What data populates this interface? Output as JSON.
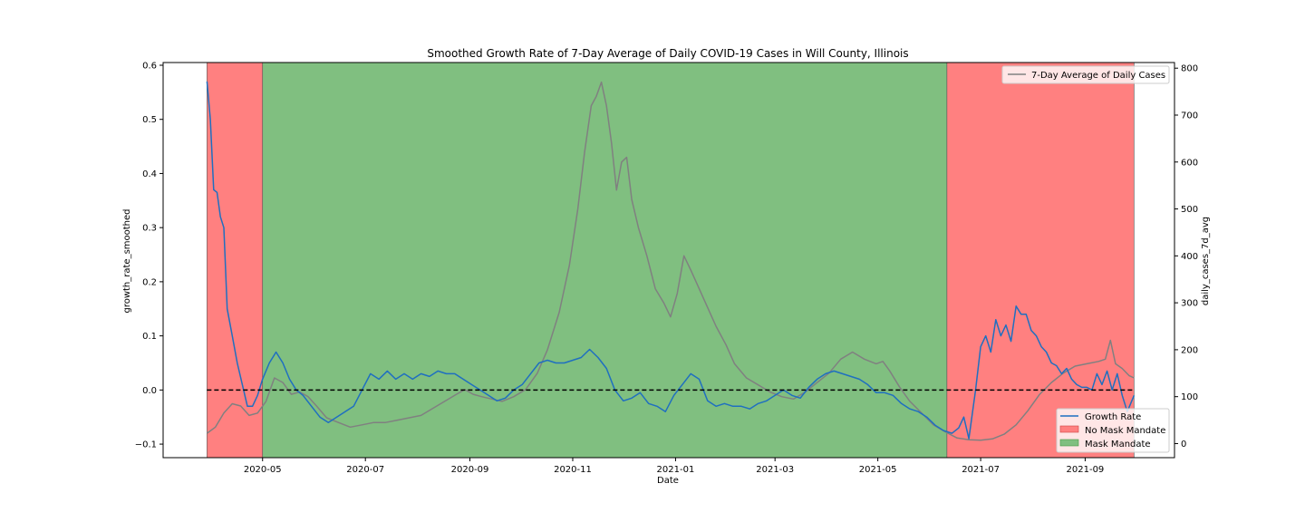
{
  "chart_data": {
    "type": "line",
    "title": "Smoothed Growth Rate of 7-Day Average of Daily COVID-19 Cases in Will County, Illinois",
    "xlabel": "Date",
    "ylabel_left": "growth_rate_smoothed",
    "ylabel_right": "daily_cases_7d_avg",
    "x_range": [
      "2020-03-03",
      "2021-10-24"
    ],
    "ylim_left": [
      -0.125,
      0.605
    ],
    "ylim_right": [
      -30,
      812
    ],
    "x_ticks": [
      "2020-05",
      "2020-07",
      "2020-09",
      "2020-11",
      "2021-01",
      "2021-03",
      "2021-05",
      "2021-07",
      "2021-09"
    ],
    "y_ticks_left": [
      "−0.1",
      "0.0",
      "0.1",
      "0.2",
      "0.3",
      "0.4",
      "0.5",
      "0.6"
    ],
    "y_ticks_right": [
      "0",
      "100",
      "200",
      "300",
      "400",
      "500",
      "600",
      "700",
      "800"
    ],
    "zero_line": 0,
    "regions": [
      {
        "name": "No Mask Mandate",
        "start": "2020-03-29",
        "end": "2020-05-01",
        "color": "#ff8080"
      },
      {
        "name": "Mask Mandate",
        "start": "2020-05-01",
        "end": "2021-06-11",
        "color": "#80bf80"
      },
      {
        "name": "No Mask Mandate",
        "start": "2021-06-11",
        "end": "2021-09-30",
        "color": "#ff8080"
      }
    ],
    "legend_right": {
      "placement": "top-right",
      "entries": [
        "7-Day Average of Daily Cases"
      ]
    },
    "legend_left": {
      "placement": "bottom-right",
      "entries": [
        "Growth Rate",
        "No Mask Mandate",
        "Mask Mandate"
      ]
    },
    "series": [
      {
        "name": "Growth Rate",
        "axis": "left",
        "color": "#1f6fc0",
        "points": [
          [
            "2020-03-29",
            0.57
          ],
          [
            "2020-03-31",
            0.5
          ],
          [
            "2020-04-02",
            0.37
          ],
          [
            "2020-04-04",
            0.365
          ],
          [
            "2020-04-06",
            0.32
          ],
          [
            "2020-04-08",
            0.3
          ],
          [
            "2020-04-10",
            0.15
          ],
          [
            "2020-04-13",
            0.1
          ],
          [
            "2020-04-16",
            0.05
          ],
          [
            "2020-04-19",
            0.01
          ],
          [
            "2020-04-22",
            -0.03
          ],
          [
            "2020-04-25",
            -0.03
          ],
          [
            "2020-04-28",
            -0.01
          ],
          [
            "2020-05-01",
            0.02
          ],
          [
            "2020-05-05",
            0.05
          ],
          [
            "2020-05-09",
            0.07
          ],
          [
            "2020-05-13",
            0.05
          ],
          [
            "2020-05-17",
            0.02
          ],
          [
            "2020-05-21",
            0.0
          ],
          [
            "2020-05-25",
            -0.01
          ],
          [
            "2020-05-30",
            -0.03
          ],
          [
            "2020-06-04",
            -0.05
          ],
          [
            "2020-06-09",
            -0.06
          ],
          [
            "2020-06-14",
            -0.05
          ],
          [
            "2020-06-19",
            -0.04
          ],
          [
            "2020-06-24",
            -0.03
          ],
          [
            "2020-06-29",
            0.0
          ],
          [
            "2020-07-04",
            0.03
          ],
          [
            "2020-07-09",
            0.02
          ],
          [
            "2020-07-14",
            0.035
          ],
          [
            "2020-07-19",
            0.02
          ],
          [
            "2020-07-24",
            0.03
          ],
          [
            "2020-07-29",
            0.02
          ],
          [
            "2020-08-03",
            0.03
          ],
          [
            "2020-08-08",
            0.025
          ],
          [
            "2020-08-13",
            0.035
          ],
          [
            "2020-08-18",
            0.03
          ],
          [
            "2020-08-23",
            0.03
          ],
          [
            "2020-08-28",
            0.02
          ],
          [
            "2020-09-02",
            0.01
          ],
          [
            "2020-09-07",
            0.0
          ],
          [
            "2020-09-12",
            -0.01
          ],
          [
            "2020-09-17",
            -0.02
          ],
          [
            "2020-09-22",
            -0.015
          ],
          [
            "2020-09-27",
            0.0
          ],
          [
            "2020-10-02",
            0.01
          ],
          [
            "2020-10-07",
            0.03
          ],
          [
            "2020-10-12",
            0.05
          ],
          [
            "2020-10-17",
            0.055
          ],
          [
            "2020-10-22",
            0.05
          ],
          [
            "2020-10-27",
            0.05
          ],
          [
            "2020-11-01",
            0.055
          ],
          [
            "2020-11-06",
            0.06
          ],
          [
            "2020-11-11",
            0.075
          ],
          [
            "2020-11-16",
            0.06
          ],
          [
            "2020-11-21",
            0.04
          ],
          [
            "2020-11-26",
            0.0
          ],
          [
            "2020-12-01",
            -0.02
          ],
          [
            "2020-12-06",
            -0.015
          ],
          [
            "2020-12-11",
            -0.005
          ],
          [
            "2020-12-16",
            -0.025
          ],
          [
            "2020-12-21",
            -0.03
          ],
          [
            "2020-12-26",
            -0.04
          ],
          [
            "2020-12-31",
            -0.01
          ],
          [
            "2021-01-05",
            0.01
          ],
          [
            "2021-01-10",
            0.03
          ],
          [
            "2021-01-15",
            0.02
          ],
          [
            "2021-01-20",
            -0.02
          ],
          [
            "2021-01-25",
            -0.03
          ],
          [
            "2021-01-30",
            -0.025
          ],
          [
            "2021-02-04",
            -0.03
          ],
          [
            "2021-02-09",
            -0.03
          ],
          [
            "2021-02-14",
            -0.035
          ],
          [
            "2021-02-19",
            -0.025
          ],
          [
            "2021-02-24",
            -0.02
          ],
          [
            "2021-03-01",
            -0.01
          ],
          [
            "2021-03-06",
            0.0
          ],
          [
            "2021-03-11",
            -0.01
          ],
          [
            "2021-03-16",
            -0.015
          ],
          [
            "2021-03-21",
            0.005
          ],
          [
            "2021-03-26",
            0.02
          ],
          [
            "2021-03-31",
            0.03
          ],
          [
            "2021-04-05",
            0.035
          ],
          [
            "2021-04-10",
            0.03
          ],
          [
            "2021-04-15",
            0.025
          ],
          [
            "2021-04-20",
            0.02
          ],
          [
            "2021-04-25",
            0.01
          ],
          [
            "2021-04-30",
            -0.005
          ],
          [
            "2021-05-05",
            -0.005
          ],
          [
            "2021-05-10",
            -0.01
          ],
          [
            "2021-05-15",
            -0.025
          ],
          [
            "2021-05-20",
            -0.035
          ],
          [
            "2021-05-25",
            -0.04
          ],
          [
            "2021-05-30",
            -0.05
          ],
          [
            "2021-06-04",
            -0.065
          ],
          [
            "2021-06-09",
            -0.075
          ],
          [
            "2021-06-14",
            -0.08
          ],
          [
            "2021-06-18",
            -0.07
          ],
          [
            "2021-06-21",
            -0.05
          ],
          [
            "2021-06-24",
            -0.09
          ],
          [
            "2021-06-28",
            0.0
          ],
          [
            "2021-07-01",
            0.08
          ],
          [
            "2021-07-04",
            0.1
          ],
          [
            "2021-07-07",
            0.07
          ],
          [
            "2021-07-10",
            0.13
          ],
          [
            "2021-07-13",
            0.1
          ],
          [
            "2021-07-16",
            0.12
          ],
          [
            "2021-07-19",
            0.09
          ],
          [
            "2021-07-22",
            0.155
          ],
          [
            "2021-07-25",
            0.14
          ],
          [
            "2021-07-28",
            0.14
          ],
          [
            "2021-07-31",
            0.11
          ],
          [
            "2021-08-03",
            0.1
          ],
          [
            "2021-08-06",
            0.08
          ],
          [
            "2021-08-09",
            0.07
          ],
          [
            "2021-08-12",
            0.05
          ],
          [
            "2021-08-15",
            0.045
          ],
          [
            "2021-08-18",
            0.03
          ],
          [
            "2021-08-21",
            0.04
          ],
          [
            "2021-08-24",
            0.02
          ],
          [
            "2021-08-27",
            0.01
          ],
          [
            "2021-08-30",
            0.005
          ],
          [
            "2021-09-02",
            0.005
          ],
          [
            "2021-09-05",
            0.0
          ],
          [
            "2021-09-08",
            0.03
          ],
          [
            "2021-09-11",
            0.01
          ],
          [
            "2021-09-14",
            0.035
          ],
          [
            "2021-09-17",
            0.0
          ],
          [
            "2021-09-20",
            0.03
          ],
          [
            "2021-09-23",
            -0.01
          ],
          [
            "2021-09-26",
            -0.04
          ],
          [
            "2021-09-30",
            -0.01
          ]
        ]
      },
      {
        "name": "7-Day Average of Daily Cases",
        "axis": "right",
        "color": "#808080",
        "points": [
          [
            "2020-03-29",
            22
          ],
          [
            "2020-04-03",
            35
          ],
          [
            "2020-04-08",
            65
          ],
          [
            "2020-04-13",
            85
          ],
          [
            "2020-04-18",
            80
          ],
          [
            "2020-04-23",
            60
          ],
          [
            "2020-04-28",
            65
          ],
          [
            "2020-05-03",
            90
          ],
          [
            "2020-05-08",
            140
          ],
          [
            "2020-05-13",
            130
          ],
          [
            "2020-05-18",
            105
          ],
          [
            "2020-05-23",
            110
          ],
          [
            "2020-05-28",
            100
          ],
          [
            "2020-06-02",
            80
          ],
          [
            "2020-06-08",
            55
          ],
          [
            "2020-06-15",
            45
          ],
          [
            "2020-06-22",
            35
          ],
          [
            "2020-06-29",
            40
          ],
          [
            "2020-07-06",
            45
          ],
          [
            "2020-07-13",
            45
          ],
          [
            "2020-07-20",
            50
          ],
          [
            "2020-07-27",
            55
          ],
          [
            "2020-08-03",
            60
          ],
          [
            "2020-08-10",
            75
          ],
          [
            "2020-08-17",
            90
          ],
          [
            "2020-08-24",
            105
          ],
          [
            "2020-08-29",
            115
          ],
          [
            "2020-09-03",
            105
          ],
          [
            "2020-09-08",
            100
          ],
          [
            "2020-09-14",
            95
          ],
          [
            "2020-09-20",
            90
          ],
          [
            "2020-09-27",
            100
          ],
          [
            "2020-10-04",
            115
          ],
          [
            "2020-10-11",
            150
          ],
          [
            "2020-10-17",
            200
          ],
          [
            "2020-10-24",
            280
          ],
          [
            "2020-10-30",
            380
          ],
          [
            "2020-11-04",
            500
          ],
          [
            "2020-11-08",
            620
          ],
          [
            "2020-11-12",
            720
          ],
          [
            "2020-11-15",
            740
          ],
          [
            "2020-11-18",
            770
          ],
          [
            "2020-11-21",
            720
          ],
          [
            "2020-11-24",
            640
          ],
          [
            "2020-11-27",
            540
          ],
          [
            "2020-11-30",
            600
          ],
          [
            "2020-12-03",
            610
          ],
          [
            "2020-12-06",
            520
          ],
          [
            "2020-12-10",
            460
          ],
          [
            "2020-12-15",
            400
          ],
          [
            "2020-12-20",
            330
          ],
          [
            "2020-12-25",
            300
          ],
          [
            "2020-12-29",
            270
          ],
          [
            "2021-01-02",
            320
          ],
          [
            "2021-01-06",
            400
          ],
          [
            "2021-01-10",
            370
          ],
          [
            "2021-01-15",
            330
          ],
          [
            "2021-01-20",
            290
          ],
          [
            "2021-01-25",
            250
          ],
          [
            "2021-01-31",
            210
          ],
          [
            "2021-02-05",
            170
          ],
          [
            "2021-02-12",
            140
          ],
          [
            "2021-02-19",
            125
          ],
          [
            "2021-02-26",
            110
          ],
          [
            "2021-03-05",
            100
          ],
          [
            "2021-03-12",
            95
          ],
          [
            "2021-03-19",
            110
          ],
          [
            "2021-03-26",
            130
          ],
          [
            "2021-04-02",
            150
          ],
          [
            "2021-04-09",
            180
          ],
          [
            "2021-04-16",
            195
          ],
          [
            "2021-04-23",
            180
          ],
          [
            "2021-04-30",
            170
          ],
          [
            "2021-05-04",
            175
          ],
          [
            "2021-05-08",
            155
          ],
          [
            "2021-05-14",
            120
          ],
          [
            "2021-05-20",
            90
          ],
          [
            "2021-05-27",
            65
          ],
          [
            "2021-06-03",
            40
          ],
          [
            "2021-06-10",
            25
          ],
          [
            "2021-06-17",
            12
          ],
          [
            "2021-06-24",
            8
          ],
          [
            "2021-07-01",
            7
          ],
          [
            "2021-07-08",
            10
          ],
          [
            "2021-07-15",
            20
          ],
          [
            "2021-07-22",
            40
          ],
          [
            "2021-07-29",
            70
          ],
          [
            "2021-08-05",
            105
          ],
          [
            "2021-08-12",
            130
          ],
          [
            "2021-08-19",
            150
          ],
          [
            "2021-08-26",
            165
          ],
          [
            "2021-09-02",
            170
          ],
          [
            "2021-09-09",
            175
          ],
          [
            "2021-09-13",
            180
          ],
          [
            "2021-09-16",
            220
          ],
          [
            "2021-09-19",
            170
          ],
          [
            "2021-09-23",
            160
          ],
          [
            "2021-09-27",
            145
          ],
          [
            "2021-09-30",
            140
          ]
        ]
      }
    ]
  }
}
